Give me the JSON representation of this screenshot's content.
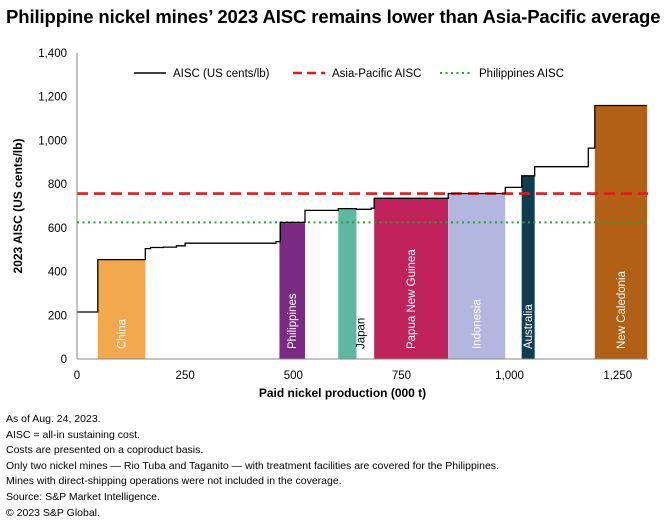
{
  "title": "Philippine nickel mines’ 2023 AISC remains lower than Asia-Pacific average",
  "notes": [
    "As of Aug. 24, 2023.",
    "AISC = all-in sustaining cost.",
    "Costs are presented on a coproduct basis.",
    "Only two nickel mines — Rio Tuba and Taganito — with treatment facilities are covered for the Philippines.",
    "Mines with direct-shipping operations were not included in the coverage.",
    "Source: S&P Market Intelligence.",
    "© 2023 S&P Global."
  ],
  "chart_data": {
    "type": "area",
    "xlabel": "Paid nickel production (000 t)",
    "ylabel": "2023 AISC (US cents/lb)",
    "xlim": [
      0,
      1320
    ],
    "ylim": [
      0,
      1400
    ],
    "x_ticks": [
      0,
      250,
      500,
      750,
      1000,
      1250
    ],
    "x_tick_labels": [
      "0",
      "250",
      "500",
      "750",
      "1,000",
      "1,250"
    ],
    "y_ticks": [
      0,
      200,
      400,
      600,
      800,
      1000,
      1200,
      1400
    ],
    "y_tick_labels": [
      "0",
      "200",
      "400",
      "600",
      "800",
      "1,000",
      "1,200",
      "1,400"
    ],
    "grid": false,
    "legend_position": "top",
    "legend": [
      {
        "label": "AISC (US cents/lb)",
        "style": "solid",
        "color": "#000000"
      },
      {
        "label": "Asia-Pacific AISC",
        "style": "dashed",
        "color": "#e01b1b"
      },
      {
        "label": "Philippines AISC",
        "style": "dotted",
        "color": "#2e9b3c"
      }
    ],
    "reference_lines": [
      {
        "name": "Asia-Pacific AISC",
        "value": 757,
        "color": "#e01b1b"
      },
      {
        "name": "Philippines AISC",
        "value": 625,
        "color": "#2e9b3c"
      }
    ],
    "aisc_curve": [
      [
        0,
        215
      ],
      [
        48,
        215
      ],
      [
        48,
        455
      ],
      [
        158,
        455
      ],
      [
        158,
        505
      ],
      [
        170,
        505
      ],
      [
        170,
        510
      ],
      [
        200,
        510
      ],
      [
        200,
        512
      ],
      [
        230,
        512
      ],
      [
        230,
        518
      ],
      [
        250,
        518
      ],
      [
        250,
        530
      ],
      [
        460,
        530
      ],
      [
        460,
        537
      ],
      [
        470,
        537
      ],
      [
        470,
        625
      ],
      [
        527,
        625
      ],
      [
        527,
        625
      ],
      [
        527,
        680
      ],
      [
        604,
        680
      ],
      [
        604,
        688
      ],
      [
        646,
        688
      ],
      [
        646,
        685
      ],
      [
        680,
        685
      ],
      [
        680,
        690
      ],
      [
        687,
        690
      ],
      [
        687,
        735
      ],
      [
        858,
        735
      ],
      [
        858,
        757
      ],
      [
        990,
        757
      ],
      [
        990,
        785
      ],
      [
        1028,
        785
      ],
      [
        1028,
        838
      ],
      [
        1058,
        838
      ],
      [
        1058,
        880
      ],
      [
        1182,
        880
      ],
      [
        1182,
        965
      ],
      [
        1197,
        965
      ],
      [
        1197,
        1160
      ],
      [
        1318,
        1160
      ]
    ],
    "countries": [
      {
        "label": "China",
        "x_start": 48,
        "x_end": 158,
        "aisc": 455,
        "color": "#f2a94e"
      },
      {
        "label": "Philippines",
        "x_start": 468,
        "x_end": 527,
        "aisc": 625,
        "color": "#7b2a84"
      },
      {
        "label": "Japan",
        "x_start": 604,
        "x_end": 646,
        "aisc": 688,
        "color": "#5cb8a0"
      },
      {
        "label": "Papua New Guinea",
        "x_start": 687,
        "x_end": 858,
        "aisc": 735,
        "color": "#c0235a"
      },
      {
        "label": "Indonesia",
        "x_start": 858,
        "x_end": 990,
        "aisc": 757,
        "color": "#b3b7e0"
      },
      {
        "label": "Australia",
        "x_start": 1028,
        "x_end": 1058,
        "aisc": 838,
        "color": "#0f3d4f"
      },
      {
        "label": "New Caledonia",
        "x_start": 1197,
        "x_end": 1318,
        "aisc": 1160,
        "color": "#b26016"
      }
    ]
  }
}
